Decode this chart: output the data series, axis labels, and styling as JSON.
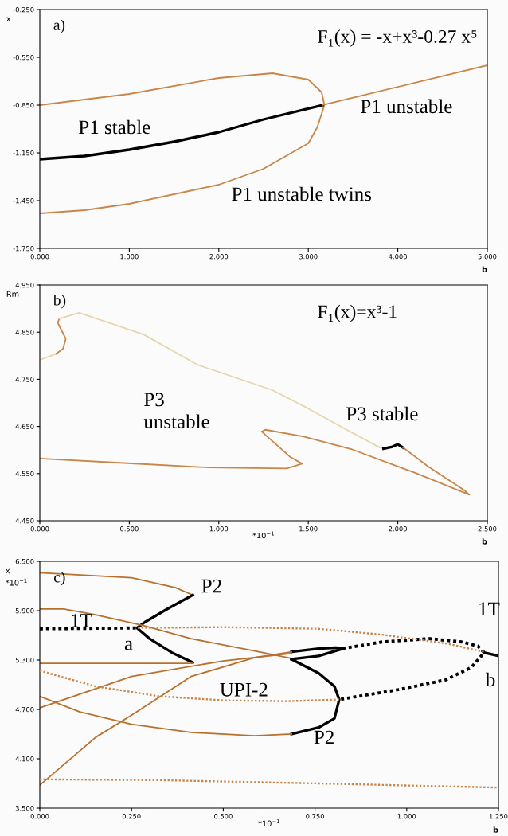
{
  "chart_data": [
    {
      "type": "line",
      "title": "a)",
      "subtitle": "F₁(x) = -x+x³-0.27 x⁵",
      "xlabel": "b",
      "ylabel": "x",
      "xlim": [
        0,
        5
      ],
      "xticks": [
        {
          "value": 0,
          "label": "0.000"
        },
        {
          "value": 1,
          "label": "1.000"
        },
        {
          "value": 2,
          "label": "2.000"
        },
        {
          "value": 3,
          "label": "3.000"
        },
        {
          "value": 4,
          "label": "4.000"
        },
        {
          "value": 5,
          "label": "5.000"
        }
      ],
      "ylim": [
        -1.75,
        -0.25
      ],
      "yticks": [
        {
          "value": -1.75,
          "label": "-1.750"
        },
        {
          "value": -1.45,
          "label": "-1.450"
        },
        {
          "value": -1.15,
          "label": "-1.150"
        },
        {
          "value": -0.85,
          "label": "-0.850"
        },
        {
          "value": -0.55,
          "label": "-0.550"
        },
        {
          "value": -0.25,
          "label": "-0.250"
        }
      ],
      "grid": false,
      "legend": false,
      "marker": "none",
      "series": [
        {
          "color": "#c8864a",
          "line_style": "solid",
          "x": [
            0,
            1,
            2,
            2.6,
            3,
            3.15,
            3.18,
            3.1,
            3,
            2.5,
            2,
            1,
            0.5,
            0
          ],
          "values": [
            -0.85,
            -0.78,
            -0.68,
            -0.65,
            -0.69,
            -0.77,
            -0.85,
            -0.99,
            -1.09,
            -1.25,
            -1.35,
            -1.47,
            -1.51,
            -1.53
          ]
        },
        {
          "color": "#000000",
          "line_style": "solid",
          "x": [
            0,
            0.5,
            1,
            1.5,
            2,
            2.5,
            3.16
          ],
          "values": [
            -1.19,
            -1.17,
            -1.13,
            -1.08,
            -1.02,
            -0.94,
            -0.85
          ]
        },
        {
          "color": "#c8864a",
          "line_style": "solid",
          "x": [
            3.16,
            5
          ],
          "values": [
            -0.85,
            -0.6
          ]
        }
      ],
      "annotations": [
        "P1 stable",
        "P1 unstable",
        "P1 unstable twins"
      ]
    },
    {
      "type": "line",
      "title": "b)",
      "subtitle": "F₁(x)=x³-1",
      "xlabel": "b",
      "ylabel": "Rm",
      "xlim": [
        0,
        2.5
      ],
      "xticks": [
        {
          "value": 0,
          "label": "0.000"
        },
        {
          "value": 0.5,
          "label": "0.500"
        },
        {
          "value": 1,
          "label": "1.000"
        },
        {
          "value": 1.5,
          "label": "1.500"
        },
        {
          "value": 2,
          "label": "2.000"
        },
        {
          "value": 2.5,
          "label": "2.500"
        }
      ],
      "ylim": [
        4.45,
        4.95
      ],
      "yticks": [
        {
          "value": 4.45,
          "label": "4.450"
        },
        {
          "value": 4.55,
          "label": "4.550"
        },
        {
          "value": 4.65,
          "label": "4.650"
        },
        {
          "value": 4.75,
          "label": "4.750"
        },
        {
          "value": 4.85,
          "label": "4.850"
        },
        {
          "value": 4.95,
          "label": "4.950"
        }
      ],
      "grid": false,
      "legend": false,
      "marker": "none",
      "series": [
        {
          "color": "#e6d6ae",
          "line_style": "solid",
          "x": [
            0,
            0.09
          ],
          "values": [
            4.791,
            4.804
          ]
        },
        {
          "color": "#c8864a",
          "line_style": "solid",
          "x": [
            0.09,
            0.13,
            0.145,
            0.12,
            0.1,
            0.11
          ],
          "values": [
            4.804,
            4.815,
            4.836,
            4.855,
            4.87,
            4.879
          ]
        },
        {
          "color": "#e6d6ae",
          "line_style": "solid",
          "x": [
            0.11,
            0.22,
            0.58,
            0.88,
            1.3,
            1.49,
            1.7,
            1.9
          ],
          "values": [
            4.879,
            4.891,
            4.845,
            4.781,
            4.727,
            4.69,
            4.646,
            4.605
          ]
        },
        {
          "color": "#000000",
          "line_style": "solid",
          "x": [
            1.92,
            1.97,
            2.0,
            2.03
          ],
          "values": [
            4.603,
            4.607,
            4.612,
            4.605
          ]
        },
        {
          "color": "#c8864a",
          "line_style": "solid",
          "x": [
            2.03,
            2.17,
            2.37,
            2.4,
            2.1,
            1.74,
            1.47,
            1.26,
            1.24,
            1.4,
            1.465,
            1.38,
            0.94,
            0.49,
            0
          ],
          "values": [
            4.605,
            4.565,
            4.515,
            4.505,
            4.551,
            4.602,
            4.629,
            4.643,
            4.639,
            4.585,
            4.571,
            4.561,
            4.563,
            4.572,
            4.582
          ]
        }
      ],
      "annotations": [
        "*10$^{−1}$",
        "P3\nunstable",
        "P3 stable"
      ]
    },
    {
      "type": "line",
      "title": "c)",
      "xlabel": "b",
      "ylabel": "x\n*10$^{−1}$",
      "xlim": [
        0,
        1.25
      ],
      "xticks": [
        {
          "value": 0,
          "label": "0.000"
        },
        {
          "value": 0.25,
          "label": "0.250"
        },
        {
          "value": 0.5,
          "label": "0.500"
        },
        {
          "value": 0.75,
          "label": "0.750"
        },
        {
          "value": 1,
          "label": "1.000"
        },
        {
          "value": 1.25,
          "label": "1.250"
        }
      ],
      "ylim": [
        3.5,
        6.5
      ],
      "yticks": [
        {
          "value": 3.5,
          "label": "3.500"
        },
        {
          "value": 4.1,
          "label": "4.100"
        },
        {
          "value": 4.7,
          "label": "4.700"
        },
        {
          "value": 5.3,
          "label": "5.300"
        },
        {
          "value": 5.9,
          "label": "5.900"
        },
        {
          "value": 6.5,
          "label": "6.500"
        }
      ],
      "grid": false,
      "legend": false,
      "marker": "none",
      "series": [
        {
          "color": "#b8702f",
          "line_style": "solid",
          "x": [
            0,
            0.25,
            0.37,
            0.417
          ],
          "values": [
            6.36,
            6.3,
            6.18,
            6.09
          ]
        },
        {
          "color": "#000000",
          "line_style": "solid",
          "x": [
            0.417,
            0.343,
            0.286,
            0.265,
            0.299,
            0.36,
            0.417
          ],
          "values": [
            6.09,
            5.91,
            5.76,
            5.69,
            5.56,
            5.39,
            5.27
          ]
        },
        {
          "color": "#b8702f",
          "line_style": "solid",
          "x": [
            0.417,
            0
          ],
          "values": [
            5.26,
            5.26
          ]
        },
        {
          "color": "#000000",
          "line_style": "dotted",
          "x": [
            0,
            0.265
          ],
          "values": [
            5.68,
            5.69
          ]
        },
        {
          "color": "#c8864a",
          "line_style": "dotted",
          "x": [
            1.21,
            1.11,
            0.93,
            0.76,
            0.5,
            0.265
          ],
          "values": [
            5.4,
            5.5,
            5.61,
            5.68,
            5.7,
            5.69
          ]
        },
        {
          "color": "#b8702f",
          "line_style": "solid",
          "x": [
            0,
            0.065,
            0.152,
            0.282,
            0.412,
            0.586,
            0.686
          ],
          "values": [
            5.92,
            5.92,
            5.85,
            5.72,
            5.56,
            5.41,
            5.32
          ]
        },
        {
          "color": "#000000",
          "line_style": "solid",
          "x": [
            0.686,
            0.76,
            0.807,
            0.825
          ],
          "values": [
            5.4,
            5.44,
            5.45,
            5.44
          ]
        },
        {
          "color": "#000000",
          "line_style": "solid",
          "x": [
            0.686,
            0.76,
            0.82
          ],
          "values": [
            5.31,
            5.35,
            5.43
          ]
        },
        {
          "color": "#b8702f",
          "line_style": "solid",
          "x": [
            0,
            0.25,
            0.5,
            0.686
          ],
          "values": [
            4.72,
            5.1,
            5.29,
            5.38
          ]
        },
        {
          "color": "#b8702f",
          "line_style": "solid",
          "x": [
            0,
            0.152,
            0.25,
            0.412,
            0.586,
            0.686
          ],
          "values": [
            3.78,
            4.36,
            4.63,
            5.1,
            5.33,
            5.4
          ]
        },
        {
          "color": "#000000",
          "line_style": "dotted",
          "x": [
            0.825,
            0.933,
            1.063,
            1.15,
            1.194,
            1.211,
            1.176,
            1.107,
            0.977,
            0.816
          ],
          "values": [
            5.44,
            5.52,
            5.56,
            5.52,
            5.47,
            5.39,
            5.21,
            5.06,
            4.94,
            4.82
          ]
        },
        {
          "color": "#000000",
          "line_style": "solid",
          "x": [
            1.211,
            1.25
          ],
          "values": [
            5.39,
            5.35
          ]
        },
        {
          "color": "#000000",
          "line_style": "solid",
          "x": [
            0.686,
            0.76,
            0.803,
            0.816,
            0.803,
            0.76,
            0.686
          ],
          "values": [
            5.31,
            5.14,
            4.98,
            4.82,
            4.59,
            4.48,
            4.4
          ]
        },
        {
          "color": "#b8702f",
          "line_style": "solid",
          "x": [
            0,
            0.109,
            0.25,
            0.412,
            0.586,
            0.686
          ],
          "values": [
            4.86,
            4.67,
            4.52,
            4.42,
            4.38,
            4.4
          ]
        },
        {
          "color": "#c8864a",
          "line_style": "dotted",
          "x": [
            0,
            0.152,
            0.326,
            0.5,
            0.673,
            0.816
          ],
          "values": [
            5.17,
            4.98,
            4.86,
            4.81,
            4.8,
            4.82
          ]
        },
        {
          "color": "#c8864a",
          "line_style": "dotted",
          "x": [
            0,
            0.326,
            0.76,
            1.25
          ],
          "values": [
            3.85,
            3.84,
            3.8,
            3.75
          ]
        }
      ],
      "annotations": [
        "*10$^{−1}$",
        "P2",
        "1T",
        "a",
        "UPI-2",
        "P2",
        "1T",
        "b"
      ]
    }
  ]
}
